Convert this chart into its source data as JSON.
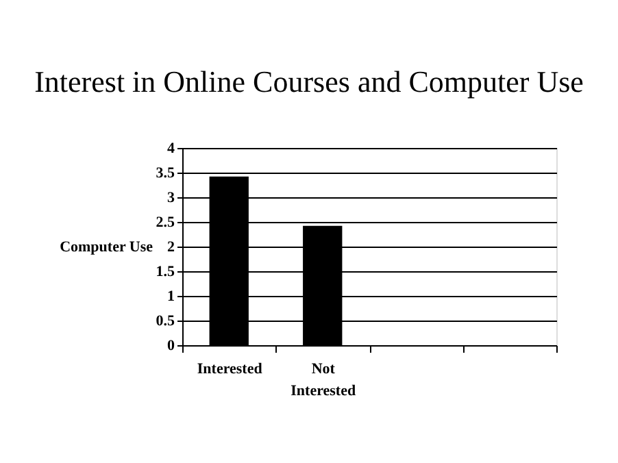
{
  "chart_data": {
    "type": "bar",
    "title": "Interest in Online Courses and Computer Use",
    "ylabel": "Computer Use",
    "categories": [
      "Interested",
      "Not Interested",
      null,
      null
    ],
    "values": [
      3.42,
      2.42,
      null,
      null
    ],
    "color": "#000000",
    "ylim": [
      0,
      4
    ],
    "yticks": [
      0,
      0.5,
      1,
      1.5,
      2,
      2.5,
      3,
      3.5,
      4
    ],
    "grid": "y"
  }
}
